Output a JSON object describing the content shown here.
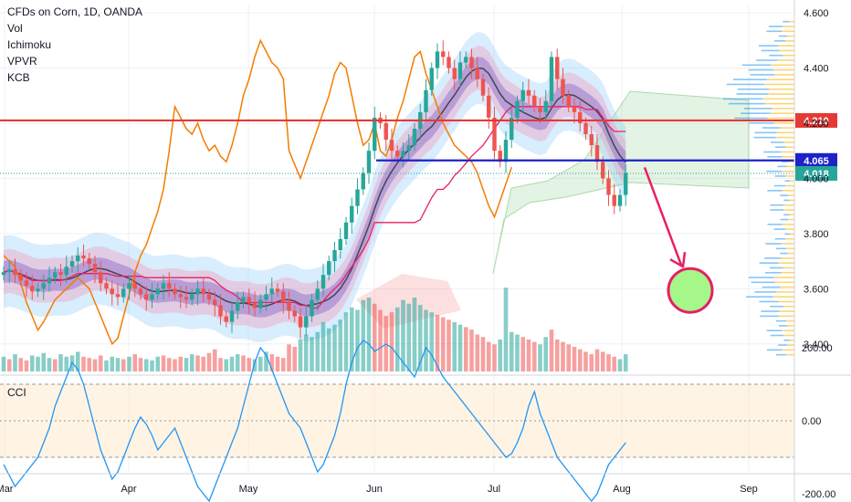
{
  "header": {
    "title": "CFDs on Corn, 1D, OANDA",
    "indicators": [
      "Vol",
      "Ichimoku",
      "VPVR",
      "KCB"
    ]
  },
  "sub_panel": {
    "label": "CCI"
  },
  "colors": {
    "up_candle": "#26a69a",
    "down_candle": "#ef5350",
    "cci_line": "#2196f3",
    "ichimoku_line": "#f57c00",
    "keltner_mid": "#434651",
    "red_level": "#e53935",
    "blue_level": "#1e22c8",
    "arrow": "#e91e63",
    "target_circle": "#a5f78a"
  },
  "chart_data": [
    {
      "type": "candlestick",
      "title": "CFDs on Corn, 1D, OANDA",
      "x_ticks": [
        "Mar",
        "Apr",
        "May",
        "Jun",
        "Jul",
        "Aug",
        "Sep"
      ],
      "y_ticks": [
        "4.600",
        "4.400",
        "4.200",
        "4.000",
        "3.800",
        "3.600",
        "3.400"
      ],
      "ylim": [
        3.3,
        4.63
      ],
      "price_levels": [
        {
          "name": "resistance",
          "value": 4.21,
          "label": "4.210",
          "color": "#e53935"
        },
        {
          "name": "support",
          "value": 4.065,
          "label": "4.065",
          "color": "#1e22c8"
        }
      ],
      "last_price": {
        "value": 4.018,
        "label": "4.018"
      },
      "target_zone": {
        "from_price": 4.02,
        "to_price": 3.66,
        "label": ""
      },
      "closes": [
        3.66,
        3.67,
        3.65,
        3.63,
        3.61,
        3.59,
        3.6,
        3.62,
        3.64,
        3.66,
        3.65,
        3.68,
        3.7,
        3.72,
        3.71,
        3.69,
        3.66,
        3.62,
        3.6,
        3.58,
        3.57,
        3.6,
        3.62,
        3.6,
        3.58,
        3.56,
        3.58,
        3.6,
        3.62,
        3.6,
        3.58,
        3.57,
        3.56,
        3.58,
        3.6,
        3.58,
        3.56,
        3.54,
        3.5,
        3.48,
        3.52,
        3.55,
        3.57,
        3.55,
        3.53,
        3.56,
        3.58,
        3.6,
        3.59,
        3.55,
        3.52,
        3.5,
        3.46,
        3.5,
        3.56,
        3.6,
        3.65,
        3.7,
        3.74,
        3.78,
        3.84,
        3.9,
        3.96,
        4.02,
        4.1,
        4.22,
        4.2,
        4.14,
        4.1,
        4.08,
        4.1,
        4.12,
        4.18,
        4.24,
        4.32,
        4.4,
        4.46,
        4.44,
        4.4,
        4.36,
        4.42,
        4.44,
        4.4,
        4.36,
        4.3,
        4.22,
        4.1,
        4.06,
        4.14,
        4.22,
        4.28,
        4.32,
        4.3,
        4.26,
        4.24,
        4.28,
        4.44,
        4.36,
        4.3,
        4.26,
        4.24,
        4.2,
        4.16,
        4.12,
        4.06,
        4.0,
        3.94,
        3.9,
        3.94,
        4.02
      ],
      "volumes": [
        12,
        10,
        14,
        11,
        9,
        13,
        12,
        15,
        11,
        10,
        14,
        12,
        13,
        16,
        12,
        11,
        10,
        13,
        9,
        12,
        11,
        10,
        12,
        14,
        11,
        10,
        9,
        12,
        13,
        11,
        10,
        12,
        11,
        14,
        13,
        12,
        15,
        18,
        11,
        10,
        12,
        14,
        13,
        11,
        10,
        12,
        16,
        14,
        12,
        11,
        22,
        20,
        26,
        30,
        28,
        32,
        40,
        35,
        38,
        42,
        48,
        52,
        50,
        58,
        60,
        55,
        50,
        45,
        48,
        52,
        58,
        55,
        60,
        54,
        50,
        48,
        46,
        44,
        42,
        40,
        38,
        36,
        34,
        30,
        28,
        24,
        22,
        26,
        68,
        32,
        30,
        28,
        26,
        24,
        22,
        28,
        34,
        26,
        24,
        22,
        20,
        18,
        16,
        14,
        18,
        16,
        14,
        12,
        10,
        14
      ],
      "volume_up": [
        1,
        0,
        1,
        0,
        0,
        1,
        1,
        1,
        1,
        0,
        1,
        1,
        1,
        1,
        0,
        0,
        0,
        0,
        1,
        1,
        1,
        0,
        1,
        0,
        0,
        1,
        1,
        1,
        0,
        0,
        0,
        0,
        1,
        1,
        0,
        0,
        0,
        0,
        0,
        1,
        1,
        1,
        0,
        0,
        1,
        1,
        1,
        0,
        0,
        0,
        0,
        0,
        1,
        1,
        1,
        1,
        1,
        1,
        1,
        1,
        1,
        1,
        1,
        1,
        1,
        0,
        0,
        0,
        0,
        1,
        1,
        1,
        1,
        1,
        1,
        1,
        0,
        0,
        0,
        1,
        1,
        0,
        0,
        0,
        0,
        0,
        0,
        1,
        1,
        1,
        1,
        0,
        0,
        0,
        1,
        1,
        0,
        0,
        0,
        0,
        0,
        0,
        0,
        0,
        0,
        0,
        0,
        0,
        1,
        1
      ],
      "ichimoku_lagging": [
        3.72,
        3.7,
        3.68,
        3.62,
        3.55,
        3.5,
        3.45,
        3.48,
        3.52,
        3.56,
        3.58,
        3.6,
        3.62,
        3.64,
        3.62,
        3.6,
        3.55,
        3.5,
        3.45,
        3.4,
        3.42,
        3.5,
        3.58,
        3.66,
        3.72,
        3.76,
        3.82,
        3.88,
        3.96,
        4.1,
        4.26,
        4.22,
        4.18,
        4.16,
        4.2,
        4.14,
        4.1,
        4.12,
        4.08,
        4.06,
        4.12,
        4.2,
        4.3,
        4.36,
        4.44,
        4.5,
        4.46,
        4.42,
        4.4,
        4.36,
        4.1,
        4.05,
        4.0,
        4.06,
        4.12,
        4.18,
        4.24,
        4.3,
        4.38,
        4.42,
        4.4,
        4.3,
        4.2,
        4.12,
        4.14,
        4.2,
        4.1,
        4.08,
        4.14,
        4.22,
        4.28,
        4.36,
        4.44,
        4.46,
        4.38,
        4.32,
        4.26,
        4.2,
        4.16,
        4.12,
        4.1,
        4.08,
        4.06,
        4.02,
        3.96,
        3.9,
        3.86,
        3.92,
        3.98,
        4.04
      ],
      "cci": [
        -120,
        -150,
        -180,
        -160,
        -140,
        -120,
        -100,
        -60,
        -20,
        40,
        80,
        120,
        160,
        140,
        100,
        40,
        -20,
        -80,
        -120,
        -160,
        -140,
        -100,
        -60,
        -20,
        10,
        -10,
        -40,
        -80,
        -60,
        -40,
        -20,
        -60,
        -100,
        -140,
        -180,
        -200,
        -220,
        -180,
        -140,
        -100,
        -60,
        -20,
        40,
        100,
        160,
        200,
        180,
        140,
        100,
        60,
        20,
        0,
        -20,
        -60,
        -100,
        -140,
        -120,
        -80,
        -40,
        20,
        100,
        160,
        200,
        220,
        210,
        190,
        200,
        210,
        200,
        180,
        160,
        140,
        120,
        160,
        200,
        180,
        150,
        120,
        100,
        80,
        60,
        40,
        20,
        0,
        -20,
        -40,
        -60,
        -80,
        -100,
        -90,
        -60,
        -20,
        40,
        80,
        20,
        -20,
        -60,
        -100,
        -120,
        -140,
        -160,
        -180,
        -200,
        -220,
        -200,
        -160,
        -120,
        -100,
        -80,
        -60
      ]
    }
  ]
}
